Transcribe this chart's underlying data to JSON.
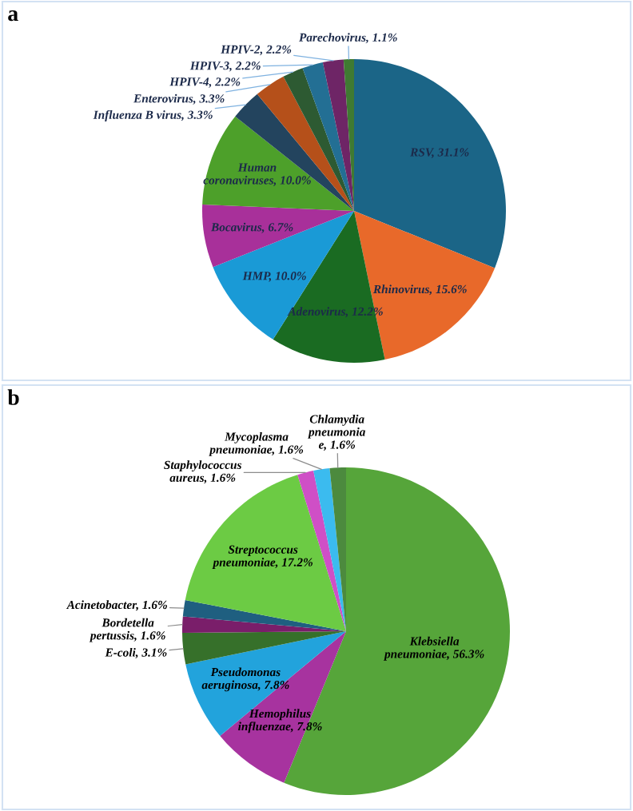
{
  "chart_data": [
    {
      "type": "pie",
      "title": "a",
      "categories": [
        "RSV",
        "Rhinovirus",
        "Adenovirus",
        "HMP",
        "Bocavirus",
        "Human coronaviruses",
        "Influenza B virus",
        "Enterovirus",
        "HPIV-4",
        "HPIV-3",
        "HPIV-2",
        "Parechovirus"
      ],
      "values": [
        31.1,
        15.6,
        12.2,
        10.0,
        6.7,
        10.0,
        3.3,
        3.3,
        2.2,
        2.2,
        2.2,
        1.1
      ],
      "value_labels": [
        "31.1%",
        "15.6%",
        "12.2%",
        "10.0%",
        "6.7%",
        "10.0%",
        "3.3%",
        "3.3%",
        "2.2%",
        "2.2%",
        "2.2%",
        "1.1%"
      ],
      "colors": [
        "#1b6587",
        "#e8692a",
        "#1a6b22",
        "#1a9ad6",
        "#a8309a",
        "#4da02a",
        "#23445e",
        "#b5501a",
        "#2d5a32",
        "#236f94",
        "#6e2566",
        "#3f7a32"
      ]
    },
    {
      "type": "pie",
      "title": "b",
      "categories": [
        "Klebsiella pneumoniae",
        "Hemophilus influenzae",
        "Pseudomonas\naeruginosa",
        "E-coli",
        "Bordetella\npertussis",
        "Acinetobacter",
        "Streptococcus\npneumoniae",
        "Staphylococcus\naureus",
        "Mycoplasma\npneumoniae",
        "Chlamydia\npneumonia\ne"
      ],
      "values": [
        56.3,
        7.8,
        7.8,
        3.1,
        1.6,
        1.6,
        17.2,
        1.6,
        1.6,
        1.6
      ],
      "value_labels": [
        "56.3%",
        "7.8%",
        "7.8%",
        "3.1%",
        "1.6%",
        "1.6%",
        "17.2%",
        "1.6%",
        "1.6%",
        "1.6%"
      ],
      "colors": [
        "#56a53a",
        "#a7339f",
        "#22a3dc",
        "#36702a",
        "#7a1e6a",
        "#1f5f80",
        "#6ccb44",
        "#cf4fc6",
        "#3bbbef",
        "#4c8a3e"
      ]
    }
  ]
}
